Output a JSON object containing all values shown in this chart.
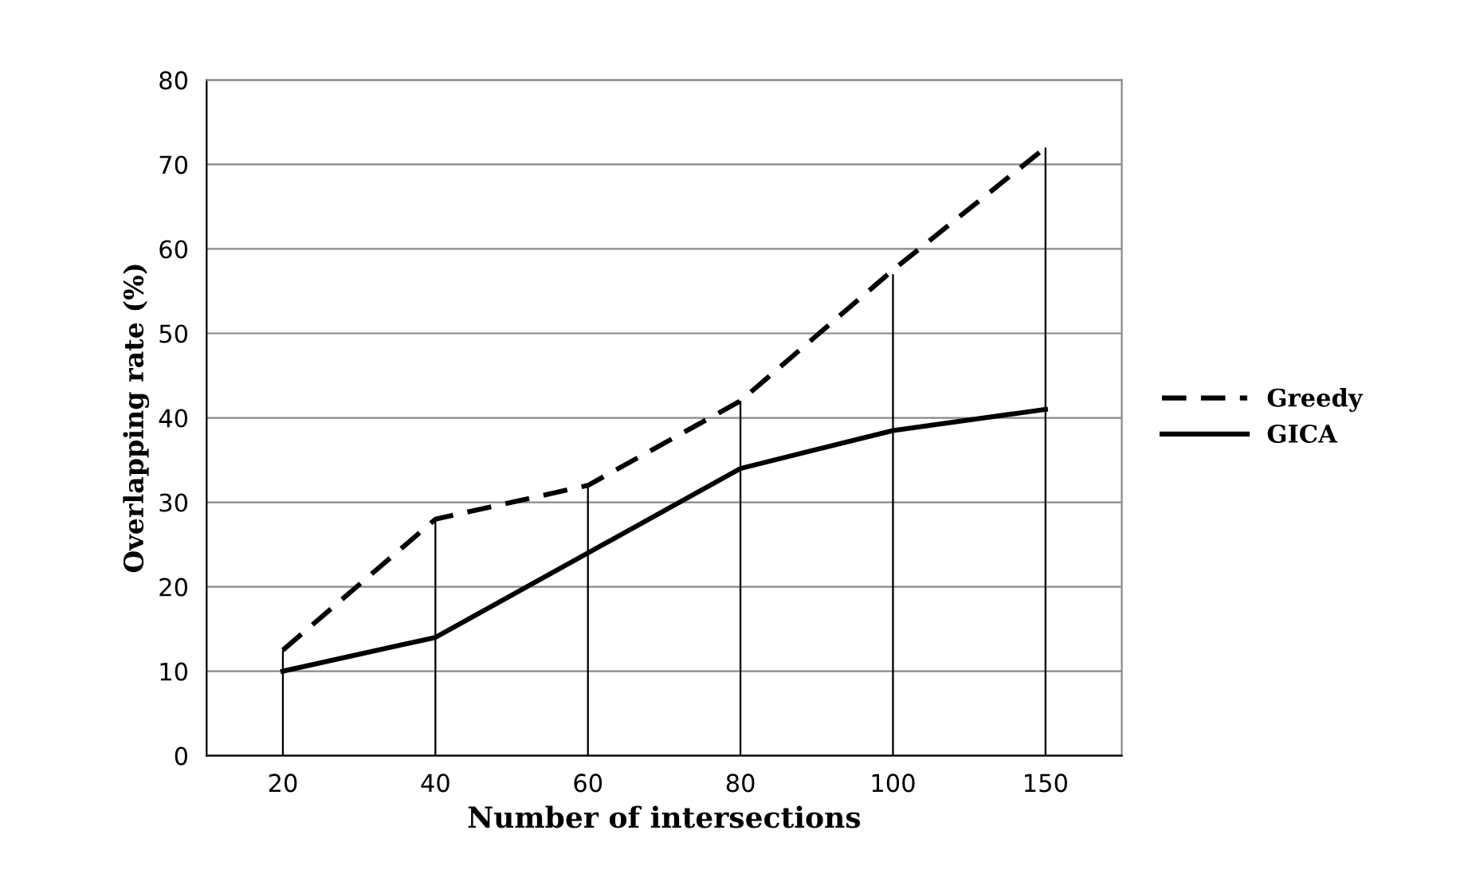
{
  "chart_data": {
    "type": "line",
    "xlabel": "Number of intersections",
    "ylabel": "Overlapping rate (%)",
    "categories": [
      "20",
      "40",
      "60",
      "80",
      "100",
      "150"
    ],
    "series": [
      {
        "type": "bar",
        "color": "#000000",
        "values": [
          12.5,
          28,
          32,
          42,
          57,
          72
        ]
      },
      {
        "name": "Greedy",
        "color": "#000000",
        "line_style": "dashed",
        "values": [
          12.5,
          28,
          32,
          42,
          57.5,
          72
        ]
      },
      {
        "name": "GICA",
        "color": "#000000",
        "line_style": "solid",
        "values": [
          10,
          14,
          24,
          34,
          38.5,
          41
        ]
      }
    ],
    "ylim": [
      0,
      80
    ],
    "yticks": [
      0,
      10,
      20,
      30,
      40,
      50,
      60,
      70,
      80
    ],
    "grid": "y",
    "legend": "right",
    "marker": "none"
  }
}
